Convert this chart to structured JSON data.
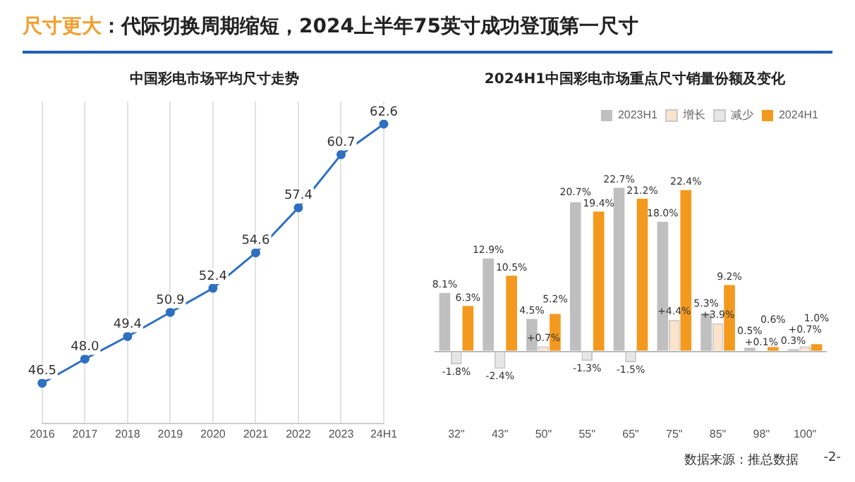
{
  "chart_data": [
    {
      "type": "line",
      "title": "中国彩电市场平均尺寸走势",
      "categories": [
        "2016",
        "2017",
        "2018",
        "2019",
        "2020",
        "2021",
        "2022",
        "2023",
        "24H1"
      ],
      "series": [
        {
          "color": "#2e6fc0",
          "values": [
            46.5,
            48.0,
            49.4,
            50.9,
            52.4,
            54.6,
            57.4,
            60.7,
            62.6
          ],
          "value_labels": [
            "46.5",
            "48.0",
            "49.4",
            "50.9",
            "52.4",
            "54.6",
            "57.4",
            "60.7",
            "62.6"
          ]
        }
      ],
      "grid": "x",
      "tick_labels": "x",
      "marker": "circle",
      "legend": false,
      "annotations": [
        "尺寸更大",
        "：代际切换周期缩短，2024上半年75英寸成功登顶第一尺寸"
      ]
    },
    {
      "type": "bar",
      "title": "2024H1中国彩电市场重点尺寸销量份额及变化",
      "categories": [
        "32\"",
        "43\"",
        "50\"",
        "55\"",
        "65\"",
        "75\"",
        "85\"",
        "98\"",
        "100\""
      ],
      "series": [
        {
          "name": "2023H1",
          "color": "#bfbfbf",
          "values": [
            8.1,
            12.9,
            4.5,
            20.7,
            22.7,
            18.0,
            5.3,
            0.5,
            0.3
          ],
          "value_labels": [
            "8.1%",
            "12.9%",
            "4.5%",
            "20.7%",
            "22.7%",
            "18.0%",
            "5.3%",
            "0.5%",
            "0.3%"
          ]
        },
        {
          "name": "增长",
          "color": "#fbe3cc",
          "values": [
            null,
            null,
            0.7,
            null,
            null,
            4.4,
            3.9,
            0.1,
            0.7
          ],
          "value_labels": [
            null,
            null,
            "+0.7%",
            null,
            null,
            "+4.4%",
            "+3.9%",
            "+0.1%",
            "+0.7%"
          ]
        },
        {
          "name": "减少",
          "color": "#e6e6e6",
          "values": [
            -1.8,
            -2.4,
            null,
            -1.3,
            -1.5,
            null,
            null,
            null,
            null
          ],
          "value_labels": [
            "-1.8%",
            "-2.4%",
            null,
            "-1.3%",
            "-1.5%",
            null,
            null,
            null,
            null
          ]
        },
        {
          "name": "2024H1",
          "color": "#f39a1e",
          "values": [
            6.3,
            10.5,
            5.2,
            19.4,
            21.2,
            22.4,
            9.2,
            0.6,
            1.0
          ],
          "value_labels": [
            "6.3%",
            "10.5%",
            "5.2%",
            "19.4%",
            "21.2%",
            "22.4%",
            "9.2%",
            "0.6%",
            "1.0%"
          ]
        }
      ],
      "tick_labels": "x",
      "grid": false,
      "legend": "top right",
      "annotations": [
        "数据来源：推总数据",
        "-2-"
      ]
    }
  ]
}
